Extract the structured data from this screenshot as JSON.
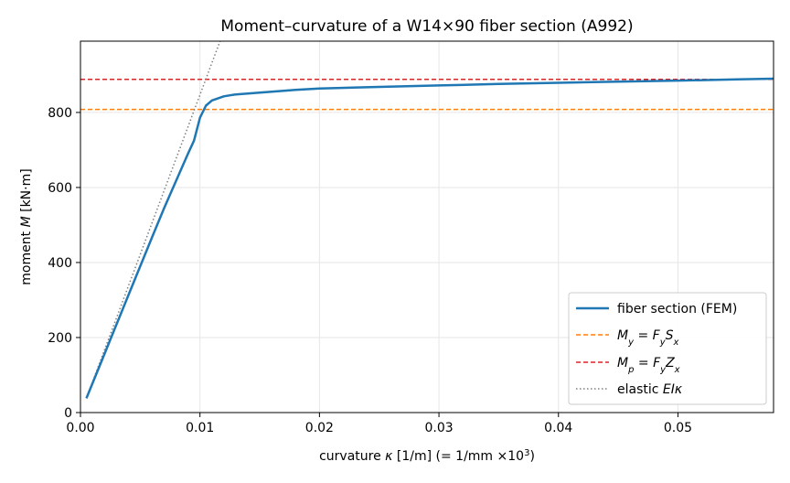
{
  "chart_data": {
    "type": "line",
    "title": "Moment–curvature of a W14×90 fiber section (A992)",
    "xlabel": "curvature κ  [1/m]   (= 1/mm ×10³)",
    "ylabel": "moment M  [kN·m]",
    "xlim": [
      0,
      0.058
    ],
    "ylim": [
      0,
      990
    ],
    "xticks": [
      0.0,
      0.01,
      0.02,
      0.03,
      0.04,
      0.05
    ],
    "xtick_labels": [
      "0.00",
      "0.01",
      "0.02",
      "0.03",
      "0.04",
      "0.05"
    ],
    "yticks": [
      0,
      200,
      400,
      600,
      800
    ],
    "ytick_labels": [
      "0",
      "200",
      "400",
      "600",
      "800"
    ],
    "grid": true,
    "legend_position": "bottom-right",
    "series": [
      {
        "name": "fiber section (FEM)",
        "style": "solid",
        "color": "#1f77b4",
        "x": [
          0.0005,
          0.002,
          0.004,
          0.006,
          0.007,
          0.008,
          0.009,
          0.0095,
          0.01,
          0.0105,
          0.011,
          0.012,
          0.013,
          0.015,
          0.018,
          0.02,
          0.025,
          0.03,
          0.035,
          0.04,
          0.045,
          0.05,
          0.055,
          0.058
        ],
        "y": [
          38,
          155,
          312,
          468,
          545,
          618,
          690,
          725,
          786,
          818,
          832,
          843,
          848,
          853,
          860,
          864,
          868,
          872,
          876,
          879,
          882,
          885,
          888,
          890
        ]
      },
      {
        "name": "M_y = F_y S_x",
        "style": "dashed",
        "color": "#ff7f0e",
        "x": [
          0,
          0.058
        ],
        "y": [
          808,
          808
        ]
      },
      {
        "name": "M_p = F_y Z_x",
        "style": "dashed",
        "color": "#d62728",
        "x": [
          0,
          0.058
        ],
        "y": [
          888,
          888
        ]
      },
      {
        "name": "elastic EIκ",
        "style": "dotted",
        "color": "#7f7f7f",
        "x": [
          0.0005,
          0.0118
        ],
        "y": [
          38,
          1000
        ]
      }
    ]
  }
}
